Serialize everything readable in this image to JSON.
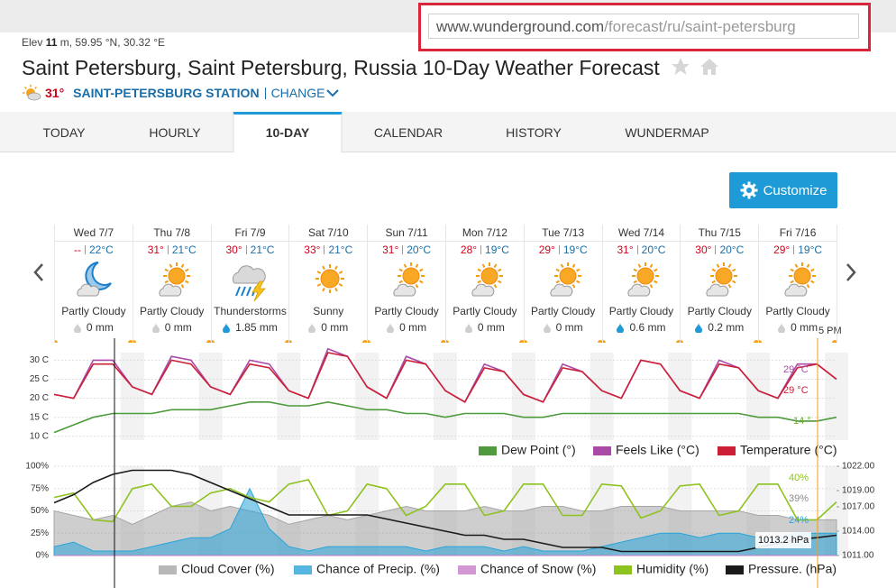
{
  "browser": {
    "url_domain": "www.wunderground.com",
    "url_path": "/forecast/ru/saint-petersburg"
  },
  "header": {
    "elev_prefix": "Elev",
    "elev": "11",
    "elev_suffix": "m, 59.95 °N, 30.32 °E",
    "title": "Saint Petersburg, Saint Petersburg, Russia 10-Day Weather Forecast",
    "current_temp": "31°",
    "station": "SAINT-PETERSBURG STATION",
    "change": "CHANGE"
  },
  "tabs": {
    "items": [
      "TODAY",
      "HOURLY",
      "10-DAY",
      "CALENDAR",
      "HISTORY",
      "WUNDERMAP"
    ],
    "active": 2
  },
  "customize": "Customize",
  "forecast": [
    {
      "date": "Wed 7/7",
      "high": "--",
      "low": "22°C",
      "icon": "moon-cloud",
      "condition": "Partly Cloudy",
      "precip": "0 mm",
      "drop_color": "#cfcfcf"
    },
    {
      "date": "Thu 7/8",
      "high": "31°",
      "low": "21°C",
      "icon": "sun-cloud",
      "condition": "Partly Cloudy",
      "precip": "0 mm",
      "drop_color": "#cfcfcf"
    },
    {
      "date": "Fri 7/9",
      "high": "30°",
      "low": "21°C",
      "icon": "thunder",
      "condition": "Thunderstorms",
      "precip": "1.85 mm",
      "drop_color": "#1e9bd7"
    },
    {
      "date": "Sat 7/10",
      "high": "33°",
      "low": "21°C",
      "icon": "sun",
      "condition": "Sunny",
      "precip": "0 mm",
      "drop_color": "#cfcfcf"
    },
    {
      "date": "Sun 7/11",
      "high": "31°",
      "low": "20°C",
      "icon": "sun-cloud",
      "condition": "Partly Cloudy",
      "precip": "0 mm",
      "drop_color": "#cfcfcf"
    },
    {
      "date": "Mon 7/12",
      "high": "28°",
      "low": "19°C",
      "icon": "sun-cloud",
      "condition": "Partly Cloudy",
      "precip": "0 mm",
      "drop_color": "#cfcfcf"
    },
    {
      "date": "Tue 7/13",
      "high": "29°",
      "low": "19°C",
      "icon": "sun-cloud",
      "condition": "Partly Cloudy",
      "precip": "0 mm",
      "drop_color": "#cfcfcf"
    },
    {
      "date": "Wed 7/14",
      "high": "31°",
      "low": "20°C",
      "icon": "sun-cloud",
      "condition": "Partly Cloudy",
      "precip": "0.6 mm",
      "drop_color": "#1e9bd7"
    },
    {
      "date": "Thu 7/15",
      "high": "30°",
      "low": "20°C",
      "icon": "sun-cloud",
      "condition": "Partly Cloudy",
      "precip": "0.2 mm",
      "drop_color": "#1e9bd7"
    },
    {
      "date": "Fri 7/16",
      "high": "29°",
      "low": "19°C",
      "icon": "sun-cloud",
      "condition": "Partly Cloudy",
      "precip": "0 mm",
      "drop_color": "#cfcfcf"
    }
  ],
  "chart_data": [
    {
      "type": "line",
      "grid": true,
      "ylim": [
        9,
        32
      ],
      "yticks": [
        {
          "value": 30,
          "label": "30 C"
        },
        {
          "value": 25,
          "label": "25 C"
        },
        {
          "value": 20,
          "label": "20 C"
        },
        {
          "value": 15,
          "label": "15 C"
        },
        {
          "value": 10,
          "label": "10 C"
        }
      ],
      "series": [
        {
          "name": "Dew Point (°)",
          "color": "#4e9a3c",
          "values": [
            11,
            13,
            15,
            16,
            16,
            16,
            17,
            17,
            17,
            18,
            19,
            19,
            18,
            18,
            19,
            18,
            17,
            17,
            16,
            16,
            15,
            16,
            16,
            16,
            15,
            15,
            16,
            16,
            16,
            16,
            16,
            16,
            16,
            16,
            16,
            16,
            15,
            15,
            14,
            14,
            15
          ]
        },
        {
          "name": "Feels Like (°C)",
          "color": "#a94aa8",
          "values": [
            21,
            20,
            30,
            30,
            23,
            21,
            31,
            30,
            23,
            21,
            30,
            29,
            22,
            20,
            33,
            31,
            23,
            20,
            31,
            29,
            22,
            19,
            29,
            27,
            21,
            19,
            29,
            27,
            22,
            20,
            30,
            29,
            22,
            20,
            30,
            28,
            22,
            20,
            29,
            29,
            25
          ]
        },
        {
          "name": "Temperature (°C)",
          "color": "#cc1f36",
          "values": [
            21,
            20,
            29,
            29,
            23,
            21,
            30,
            29,
            23,
            21,
            29,
            28,
            22,
            20,
            32,
            31,
            23,
            20,
            30,
            29,
            22,
            19,
            28,
            27,
            21,
            19,
            28,
            27,
            22,
            20,
            30,
            29,
            22,
            20,
            29,
            28,
            22,
            20,
            28,
            29,
            25
          ]
        }
      ],
      "annotations": [
        {
          "text": "29 °C",
          "color": "#a94aa8"
        },
        {
          "text": "29 °C",
          "color": "#cc1f36"
        },
        {
          "text": "14 °",
          "color": "#6aae2a"
        },
        {
          "text": "5 PM",
          "color": "#333333"
        }
      ]
    },
    {
      "type": "area-line",
      "grid": true,
      "ylim": [
        0,
        100
      ],
      "y2lim": [
        1011,
        1022
      ],
      "yticks": [
        {
          "value": 100,
          "label": "100%"
        },
        {
          "value": 75,
          "label": "75%"
        },
        {
          "value": 50,
          "label": "50%"
        },
        {
          "value": 25,
          "label": "25%"
        },
        {
          "value": 0,
          "label": "0%"
        }
      ],
      "y2ticks": [
        {
          "value": 1022,
          "label": "1022.00"
        },
        {
          "value": 1019,
          "label": "1019.00"
        },
        {
          "value": 1017,
          "label": "1017.00"
        },
        {
          "value": 1014,
          "label": "1014.00"
        },
        {
          "value": 1011,
          "label": "1011.00"
        }
      ],
      "series": [
        {
          "name": "Cloud Cover (%)",
          "color": "#a6a6a6",
          "fill": true,
          "values": [
            50,
            45,
            40,
            45,
            35,
            45,
            55,
            60,
            50,
            55,
            50,
            45,
            35,
            40,
            45,
            40,
            45,
            50,
            55,
            50,
            50,
            50,
            55,
            50,
            50,
            55,
            55,
            50,
            50,
            55,
            55,
            55,
            50,
            50,
            50,
            50,
            45,
            45,
            40,
            40,
            40
          ]
        },
        {
          "name": "Chance of Precip. (%)",
          "color": "#29a4d9",
          "fill": true,
          "values": [
            10,
            15,
            5,
            5,
            5,
            10,
            15,
            20,
            20,
            30,
            75,
            30,
            10,
            5,
            10,
            10,
            10,
            10,
            10,
            5,
            10,
            10,
            10,
            5,
            10,
            5,
            5,
            5,
            10,
            15,
            20,
            25,
            25,
            20,
            25,
            25,
            20,
            20,
            25,
            25,
            25
          ]
        },
        {
          "name": "Chance of Snow (%)",
          "color": "#c87dc8",
          "fill": true,
          "values": [
            0,
            0,
            0,
            0,
            0,
            0,
            0,
            0,
            0,
            0,
            0,
            0,
            0,
            0,
            0,
            0,
            0,
            0,
            0,
            0,
            0,
            0,
            0,
            0,
            0,
            0,
            0,
            0,
            0,
            0,
            0,
            0,
            0,
            0,
            0,
            0,
            0,
            0,
            0,
            0,
            0
          ]
        },
        {
          "name": "Humidity (%)",
          "color": "#8dc21f",
          "values": [
            65,
            70,
            40,
            38,
            75,
            80,
            55,
            55,
            70,
            75,
            65,
            60,
            80,
            85,
            45,
            50,
            80,
            75,
            45,
            55,
            80,
            80,
            45,
            50,
            80,
            80,
            45,
            45,
            80,
            78,
            42,
            50,
            78,
            80,
            45,
            50,
            80,
            80,
            40,
            40,
            60
          ]
        },
        {
          "name": "Pressure. (hPa)",
          "color": "#1a1a1a",
          "axis": "y2",
          "values": [
            1017.5,
            1018.5,
            1020,
            1021,
            1021.5,
            1021.5,
            1021.5,
            1021,
            1020,
            1019,
            1018,
            1017,
            1016,
            1016,
            1016,
            1016,
            1016,
            1015.5,
            1015,
            1014.5,
            1014,
            1013.5,
            1013.5,
            1013,
            1013,
            1012.5,
            1012,
            1012,
            1012,
            1011.5,
            1011.5,
            1011.5,
            1011.5,
            1011.5,
            1011.5,
            1011.5,
            1012,
            1012.5,
            1013,
            1013.2,
            1013.5
          ]
        }
      ],
      "annotations": [
        {
          "text": "40%",
          "color": "#8dc21f"
        },
        {
          "text": "39%",
          "color": "#8a8a8a"
        },
        {
          "text": "24%",
          "color": "#29a4d9"
        },
        {
          "text": "1013.2 hPa",
          "color": "#111111"
        }
      ]
    }
  ]
}
